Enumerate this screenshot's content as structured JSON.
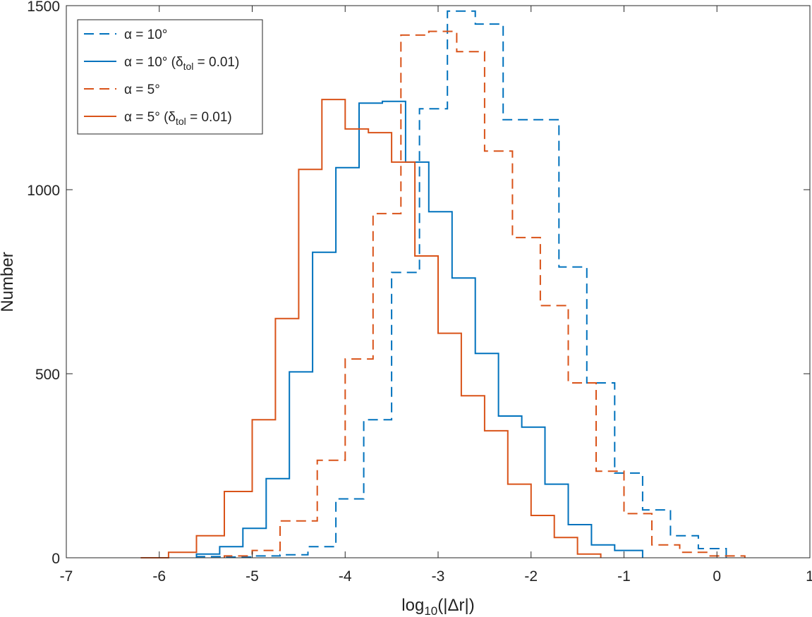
{
  "chart_data": {
    "type": "histogram-stairs",
    "xlabel": {
      "prefix": "log",
      "sub": "10",
      "suffix": "(|Δr|)"
    },
    "ylabel": "Number",
    "xlim": [
      -7,
      1
    ],
    "ylim": [
      0,
      1500
    ],
    "xticks": [
      -7,
      -6,
      -5,
      -4,
      -3,
      -2,
      -1,
      0,
      1
    ],
    "yticks": [
      0,
      500,
      1000,
      1500
    ],
    "grid": false,
    "legend_position": "top-left",
    "series": [
      {
        "name": "α = 10° ",
        "name_parts": {
          "main": "α = 10°",
          "paren_prefix": "",
          "sub": "",
          "paren_suffix": ""
        },
        "color": "#0072BD",
        "dash": true,
        "edges": [
          -5.6,
          -5.3,
          -5.0,
          -4.7,
          -4.4,
          -4.1,
          -3.8,
          -3.5,
          -3.2,
          -2.9,
          -2.6,
          -2.3,
          -2.0,
          -1.7,
          -1.4,
          -1.1,
          -0.8,
          -0.5,
          -0.2,
          0.1
        ],
        "counts": [
          3,
          2,
          5,
          8,
          30,
          160,
          375,
          775,
          1220,
          1485,
          1450,
          1190,
          1190,
          790,
          475,
          230,
          130,
          60,
          25
        ]
      },
      {
        "name": "α = 10° (δtol = 0.01)",
        "name_parts": {
          "main": "α = 10°",
          "paren_prefix": " (δ",
          "sub": "tol",
          "paren_suffix": " = 0.01)"
        },
        "color": "#0072BD",
        "dash": false,
        "edges": [
          -5.6,
          -5.35,
          -5.1,
          -4.85,
          -4.6,
          -4.35,
          -4.1,
          -3.85,
          -3.6,
          -3.35,
          -3.1,
          -2.85,
          -2.6,
          -2.35,
          -2.1,
          -1.85,
          -1.6,
          -1.35,
          -1.1,
          -0.8
        ],
        "counts": [
          10,
          30,
          80,
          215,
          505,
          830,
          1060,
          1235,
          1240,
          1075,
          940,
          760,
          555,
          385,
          355,
          200,
          90,
          35,
          20
        ]
      },
      {
        "name": "α = 5° ",
        "name_parts": {
          "main": "α = 5°",
          "paren_prefix": "",
          "sub": "",
          "paren_suffix": ""
        },
        "color": "#D95319",
        "dash": true,
        "edges": [
          -5.3,
          -5.0,
          -4.7,
          -4.3,
          -4.0,
          -3.7,
          -3.4,
          -3.1,
          -2.8,
          -2.5,
          -2.2,
          -1.9,
          -1.6,
          -1.3,
          -1.0,
          -0.7,
          -0.4,
          -0.1,
          0.3
        ],
        "counts": [
          5,
          20,
          100,
          265,
          540,
          935,
          1420,
          1430,
          1375,
          1105,
          870,
          685,
          475,
          235,
          120,
          35,
          15,
          5
        ]
      },
      {
        "name": "α = 5° (δtol = 0.01)",
        "name_parts": {
          "main": "α = 5°",
          "paren_prefix": " (δ",
          "sub": "tol",
          "paren_suffix": " = 0.01)"
        },
        "color": "#D95319",
        "dash": false,
        "edges": [
          -6.2,
          -5.9,
          -5.6,
          -5.3,
          -5.0,
          -4.75,
          -4.5,
          -4.25,
          -4.0,
          -3.75,
          -3.5,
          -3.25,
          -3.0,
          -2.75,
          -2.5,
          -2.25,
          -2.0,
          -1.75,
          -1.5,
          -1.25
        ],
        "counts": [
          0,
          15,
          60,
          180,
          375,
          650,
          1055,
          1245,
          1165,
          1155,
          1075,
          820,
          610,
          440,
          345,
          200,
          115,
          55,
          10
        ]
      }
    ]
  }
}
